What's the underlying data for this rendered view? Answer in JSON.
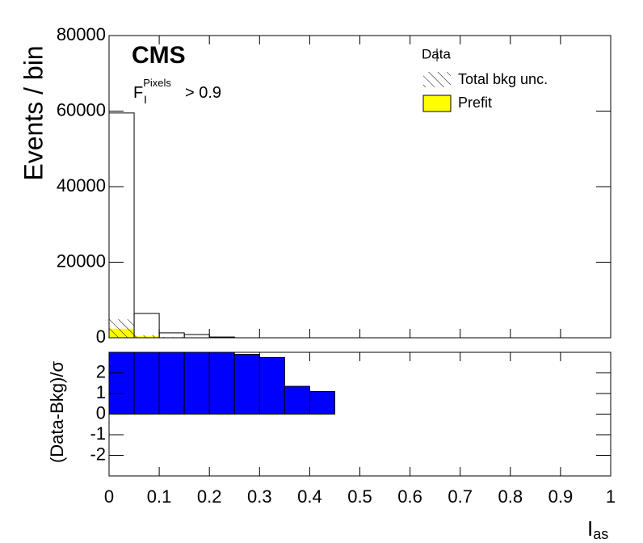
{
  "chart_data": [
    {
      "type": "histogram",
      "experiment": "CMS",
      "annotation": {
        "base": "F",
        "sub": "I",
        "sup": "Pixels",
        "rest": "> 0.9"
      },
      "ylabel": "Events / bin",
      "bins": [
        0,
        0.05,
        0.1,
        0.15,
        0.2,
        0.25,
        0.3,
        0.35,
        0.4,
        0.45,
        0.5,
        0.55,
        0.6,
        0.65,
        0.7,
        0.75,
        0.8,
        0.85,
        0.9,
        0.95,
        1
      ],
      "xlim": [
        0,
        1
      ],
      "ylim": [
        0,
        80000
      ],
      "yticks": [
        0,
        20000,
        40000,
        60000,
        80000
      ],
      "series": [
        {
          "name": "Data",
          "color": "#000000",
          "values": [
            59500,
            6450,
            1300,
            860,
            200,
            0,
            0,
            0,
            0,
            0,
            0,
            0,
            0,
            0,
            0,
            0,
            0,
            0,
            0,
            0
          ]
        },
        {
          "name": "Total bkg unc.",
          "color": "#000000",
          "values": [
            2500,
            300,
            100,
            50,
            20,
            0,
            0,
            0,
            0,
            0,
            0,
            0,
            0,
            0,
            0,
            0,
            0,
            0,
            0,
            0
          ]
        },
        {
          "name": "Prefit",
          "color": "#ffff00",
          "values": [
            2400,
            400,
            100,
            50,
            20,
            0,
            0,
            0,
            0,
            0,
            0,
            0,
            0,
            0,
            0,
            0,
            0,
            0,
            0,
            0
          ]
        }
      ]
    },
    {
      "type": "histogram",
      "ylabel": "(Data-Bkg)/σ",
      "xlabel": {
        "base": "I",
        "sub": "as"
      },
      "bins": [
        0,
        0.05,
        0.1,
        0.15,
        0.2,
        0.25,
        0.3,
        0.35,
        0.4,
        0.45,
        0.5,
        0.55,
        0.6,
        0.65,
        0.7,
        0.75,
        0.8,
        0.85,
        0.9,
        0.95,
        1
      ],
      "xlim": [
        0,
        1
      ],
      "xticks": [
        0,
        0.1,
        0.2,
        0.3,
        0.4,
        0.5,
        0.6,
        0.7,
        0.8,
        0.9,
        1
      ],
      "ylim": [
        -3,
        3
      ],
      "yticks": [
        -2,
        -1,
        0,
        1,
        2
      ],
      "color": "#0000ff",
      "values": [
        3,
        3,
        3,
        3,
        3,
        2.9,
        2.75,
        1.35,
        1.1,
        0,
        0,
        0,
        0,
        0,
        0,
        0,
        0,
        0,
        0,
        0
      ]
    }
  ]
}
